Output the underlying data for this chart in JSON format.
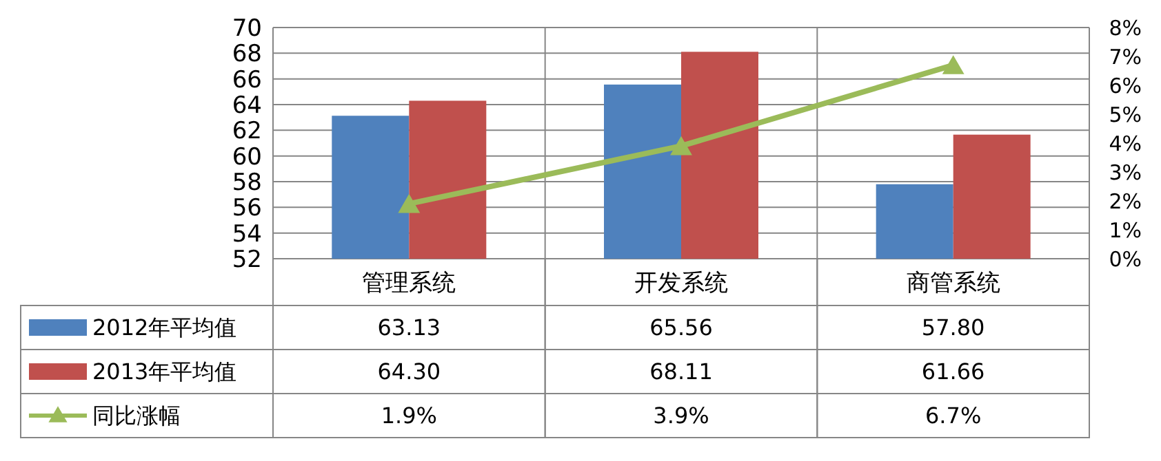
{
  "chart_data": {
    "type": "bar",
    "categories": [
      "管理系统",
      "开发系统",
      "商管系统"
    ],
    "series": [
      {
        "name": "2012年平均值",
        "color": "#4f81bd",
        "values": [
          63.13,
          65.56,
          57.8
        ],
        "value_labels": [
          "63.13",
          "65.56",
          "57.80"
        ]
      },
      {
        "name": "2013年平均值",
        "color": "#c0504d",
        "values": [
          64.3,
          68.11,
          61.66
        ],
        "value_labels": [
          "64.30",
          "68.11",
          "61.66"
        ]
      },
      {
        "name": "同比涨幅",
        "type": "line",
        "axis": "y2",
        "color": "#9bbb59",
        "marker": "triangle",
        "values": [
          1.9,
          3.9,
          6.7
        ],
        "value_labels": [
          "1.9%",
          "3.9%",
          "6.7%"
        ]
      }
    ],
    "ylim": [
      52,
      70
    ],
    "yticks": [
      52,
      54,
      56,
      58,
      60,
      62,
      64,
      66,
      68,
      70
    ],
    "y2lim": [
      0,
      8
    ],
    "y2ticks": [
      {
        "value": 0,
        "label": "0%"
      },
      {
        "value": 1,
        "label": "1%"
      },
      {
        "value": 2,
        "label": "2%"
      },
      {
        "value": 3,
        "label": "3%"
      },
      {
        "value": 4,
        "label": "4%"
      },
      {
        "value": 5,
        "label": "5%"
      },
      {
        "value": 6,
        "label": "6%"
      },
      {
        "value": 7,
        "label": "7%"
      },
      {
        "value": 8,
        "label": "8%"
      }
    ],
    "grid": "y",
    "legend": "bottom"
  }
}
